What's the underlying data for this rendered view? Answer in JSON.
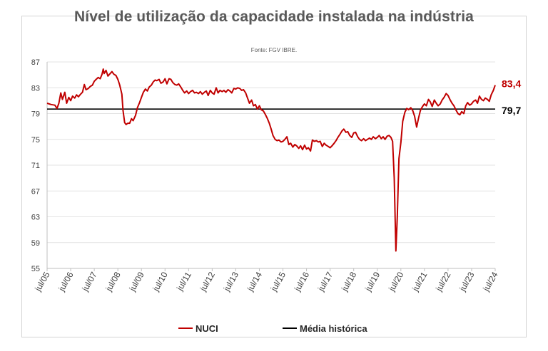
{
  "chart_data": {
    "type": "line",
    "title": "Nível de utilização da capacidade instalada na indústria",
    "source": "Fonte: FGV IBRE.",
    "xlabel": "",
    "ylabel": "",
    "ylim": [
      55,
      87
    ],
    "yticks": [
      "87",
      "83",
      "79",
      "75",
      "71",
      "67",
      "63",
      "59",
      "55"
    ],
    "xlim": [
      2005.5,
      2024.5
    ],
    "xticks": [
      "jul/05",
      "jul/06",
      "jul/07",
      "jul/08",
      "jul/09",
      "jul/10",
      "jul/11",
      "jul/12",
      "jul/13",
      "jul/14",
      "jul/15",
      "jul/16",
      "jul/17",
      "jul/18",
      "jul/19",
      "jul/20",
      "jul/21",
      "jul/22",
      "jul/23",
      "jul/24"
    ],
    "series": [
      {
        "name": "NUCI",
        "color": "#c00000",
        "end_label": "83,4",
        "points": [
          [
            2005.5,
            80.6
          ],
          [
            2005.67,
            80.4
          ],
          [
            2005.83,
            80.3
          ],
          [
            2005.92,
            79.8
          ],
          [
            2006.0,
            80.6
          ],
          [
            2006.08,
            82.2
          ],
          [
            2006.15,
            81.2
          ],
          [
            2006.25,
            82.3
          ],
          [
            2006.33,
            80.6
          ],
          [
            2006.42,
            81.5
          ],
          [
            2006.5,
            81.0
          ],
          [
            2006.58,
            81.7
          ],
          [
            2006.67,
            81.4
          ],
          [
            2006.75,
            81.9
          ],
          [
            2006.83,
            81.6
          ],
          [
            2006.92,
            82.0
          ],
          [
            2007.0,
            82.3
          ],
          [
            2007.08,
            83.5
          ],
          [
            2007.15,
            82.7
          ],
          [
            2007.25,
            82.9
          ],
          [
            2007.33,
            83.2
          ],
          [
            2007.42,
            83.4
          ],
          [
            2007.5,
            84.0
          ],
          [
            2007.58,
            84.3
          ],
          [
            2007.67,
            84.6
          ],
          [
            2007.75,
            84.4
          ],
          [
            2007.83,
            85.1
          ],
          [
            2007.88,
            85.9
          ],
          [
            2007.92,
            85.2
          ],
          [
            2008.0,
            85.7
          ],
          [
            2008.08,
            84.8
          ],
          [
            2008.15,
            85.1
          ],
          [
            2008.25,
            85.5
          ],
          [
            2008.33,
            85.1
          ],
          [
            2008.42,
            84.9
          ],
          [
            2008.5,
            84.3
          ],
          [
            2008.58,
            83.4
          ],
          [
            2008.67,
            82.0
          ],
          [
            2008.72,
            79.5
          ],
          [
            2008.79,
            77.6
          ],
          [
            2008.85,
            77.3
          ],
          [
            2008.92,
            77.5
          ],
          [
            2009.0,
            77.5
          ],
          [
            2009.08,
            78.2
          ],
          [
            2009.15,
            77.9
          ],
          [
            2009.25,
            78.7
          ],
          [
            2009.33,
            79.9
          ],
          [
            2009.42,
            80.7
          ],
          [
            2009.5,
            81.5
          ],
          [
            2009.58,
            82.3
          ],
          [
            2009.67,
            82.8
          ],
          [
            2009.75,
            82.5
          ],
          [
            2009.83,
            83.1
          ],
          [
            2009.92,
            83.4
          ],
          [
            2010.0,
            83.9
          ],
          [
            2010.08,
            84.2
          ],
          [
            2010.15,
            84.1
          ],
          [
            2010.25,
            84.3
          ],
          [
            2010.33,
            83.7
          ],
          [
            2010.42,
            83.9
          ],
          [
            2010.5,
            84.4
          ],
          [
            2010.58,
            83.6
          ],
          [
            2010.67,
            84.4
          ],
          [
            2010.75,
            84.3
          ],
          [
            2010.83,
            83.8
          ],
          [
            2010.92,
            83.5
          ],
          [
            2011.0,
            83.4
          ],
          [
            2011.08,
            83.6
          ],
          [
            2011.17,
            83.1
          ],
          [
            2011.25,
            82.6
          ],
          [
            2011.33,
            82.2
          ],
          [
            2011.42,
            82.5
          ],
          [
            2011.5,
            82.1
          ],
          [
            2011.58,
            82.4
          ],
          [
            2011.67,
            82.6
          ],
          [
            2011.75,
            82.2
          ],
          [
            2011.83,
            82.3
          ],
          [
            2011.92,
            82.1
          ],
          [
            2012.0,
            82.4
          ],
          [
            2012.08,
            82.0
          ],
          [
            2012.17,
            82.3
          ],
          [
            2012.25,
            82.5
          ],
          [
            2012.33,
            81.8
          ],
          [
            2012.42,
            82.6
          ],
          [
            2012.5,
            82.2
          ],
          [
            2012.58,
            82.0
          ],
          [
            2012.67,
            83.0
          ],
          [
            2012.75,
            82.2
          ],
          [
            2012.83,
            82.6
          ],
          [
            2012.92,
            82.4
          ],
          [
            2013.0,
            82.6
          ],
          [
            2013.08,
            82.3
          ],
          [
            2013.17,
            82.7
          ],
          [
            2013.25,
            82.5
          ],
          [
            2013.33,
            82.2
          ],
          [
            2013.42,
            82.9
          ],
          [
            2013.5,
            82.8
          ],
          [
            2013.58,
            83.0
          ],
          [
            2013.67,
            82.9
          ],
          [
            2013.75,
            82.6
          ],
          [
            2013.83,
            82.7
          ],
          [
            2013.92,
            82.2
          ],
          [
            2014.0,
            81.4
          ],
          [
            2014.08,
            80.6
          ],
          [
            2014.17,
            81.1
          ],
          [
            2014.25,
            80.2
          ],
          [
            2014.33,
            80.4
          ],
          [
            2014.42,
            79.7
          ],
          [
            2014.5,
            80.2
          ],
          [
            2014.58,
            79.6
          ],
          [
            2014.67,
            79.4
          ],
          [
            2014.75,
            78.9
          ],
          [
            2014.83,
            78.3
          ],
          [
            2014.92,
            77.5
          ],
          [
            2015.0,
            76.6
          ],
          [
            2015.08,
            75.6
          ],
          [
            2015.17,
            75.0
          ],
          [
            2015.25,
            74.8
          ],
          [
            2015.33,
            74.9
          ],
          [
            2015.42,
            74.6
          ],
          [
            2015.5,
            74.7
          ],
          [
            2015.58,
            75.0
          ],
          [
            2015.67,
            75.4
          ],
          [
            2015.75,
            74.2
          ],
          [
            2015.83,
            74.4
          ],
          [
            2015.92,
            73.8
          ],
          [
            2016.0,
            74.2
          ],
          [
            2016.08,
            74.0
          ],
          [
            2016.17,
            73.6
          ],
          [
            2016.25,
            74.0
          ],
          [
            2016.33,
            73.4
          ],
          [
            2016.42,
            74.1
          ],
          [
            2016.5,
            73.5
          ],
          [
            2016.58,
            73.7
          ],
          [
            2016.67,
            73.2
          ],
          [
            2016.75,
            74.9
          ],
          [
            2016.83,
            74.7
          ],
          [
            2016.92,
            74.8
          ],
          [
            2017.0,
            74.6
          ],
          [
            2017.08,
            74.7
          ],
          [
            2017.17,
            73.9
          ],
          [
            2017.25,
            74.4
          ],
          [
            2017.33,
            74.1
          ],
          [
            2017.42,
            73.9
          ],
          [
            2017.5,
            73.7
          ],
          [
            2017.58,
            74.0
          ],
          [
            2017.67,
            74.4
          ],
          [
            2017.75,
            74.8
          ],
          [
            2017.83,
            75.3
          ],
          [
            2017.92,
            75.8
          ],
          [
            2018.0,
            76.3
          ],
          [
            2018.08,
            76.6
          ],
          [
            2018.17,
            76.1
          ],
          [
            2018.25,
            76.2
          ],
          [
            2018.33,
            75.6
          ],
          [
            2018.42,
            75.3
          ],
          [
            2018.5,
            76.0
          ],
          [
            2018.58,
            76.1
          ],
          [
            2018.67,
            75.4
          ],
          [
            2018.75,
            75.0
          ],
          [
            2018.83,
            74.8
          ],
          [
            2018.92,
            75.1
          ],
          [
            2019.0,
            74.8
          ],
          [
            2019.08,
            75.0
          ],
          [
            2019.17,
            75.2
          ],
          [
            2019.25,
            75.0
          ],
          [
            2019.33,
            75.4
          ],
          [
            2019.42,
            75.1
          ],
          [
            2019.5,
            75.3
          ],
          [
            2019.58,
            75.6
          ],
          [
            2019.67,
            75.1
          ],
          [
            2019.75,
            75.4
          ],
          [
            2019.83,
            75.0
          ],
          [
            2019.92,
            75.5
          ],
          [
            2020.0,
            75.6
          ],
          [
            2020.08,
            75.3
          ],
          [
            2020.15,
            74.7
          ],
          [
            2020.22,
            69.0
          ],
          [
            2020.29,
            57.7
          ],
          [
            2020.35,
            63.0
          ],
          [
            2020.42,
            72.0
          ],
          [
            2020.5,
            74.5
          ],
          [
            2020.58,
            77.8
          ],
          [
            2020.67,
            79.2
          ],
          [
            2020.75,
            79.8
          ],
          [
            2020.83,
            79.6
          ],
          [
            2020.92,
            79.9
          ],
          [
            2021.0,
            79.5
          ],
          [
            2021.08,
            78.6
          ],
          [
            2021.17,
            76.9
          ],
          [
            2021.25,
            78.3
          ],
          [
            2021.33,
            79.5
          ],
          [
            2021.42,
            80.1
          ],
          [
            2021.5,
            80.5
          ],
          [
            2021.58,
            80.2
          ],
          [
            2021.67,
            81.2
          ],
          [
            2021.75,
            80.8
          ],
          [
            2021.83,
            80.1
          ],
          [
            2021.92,
            81.1
          ],
          [
            2022.0,
            80.6
          ],
          [
            2022.08,
            80.2
          ],
          [
            2022.17,
            80.5
          ],
          [
            2022.25,
            81.1
          ],
          [
            2022.33,
            81.5
          ],
          [
            2022.42,
            82.1
          ],
          [
            2022.5,
            81.8
          ],
          [
            2022.58,
            81.2
          ],
          [
            2022.67,
            80.6
          ],
          [
            2022.75,
            80.2
          ],
          [
            2022.83,
            79.6
          ],
          [
            2022.92,
            79.0
          ],
          [
            2023.0,
            78.8
          ],
          [
            2023.08,
            79.3
          ],
          [
            2023.17,
            79.0
          ],
          [
            2023.25,
            80.2
          ],
          [
            2023.33,
            80.7
          ],
          [
            2023.42,
            80.3
          ],
          [
            2023.5,
            80.5
          ],
          [
            2023.58,
            80.9
          ],
          [
            2023.67,
            81.1
          ],
          [
            2023.75,
            80.6
          ],
          [
            2023.83,
            81.7
          ],
          [
            2023.92,
            81.2
          ],
          [
            2024.0,
            81.0
          ],
          [
            2024.08,
            81.4
          ],
          [
            2024.17,
            81.2
          ],
          [
            2024.25,
            80.9
          ],
          [
            2024.33,
            81.9
          ],
          [
            2024.42,
            82.6
          ],
          [
            2024.5,
            83.4
          ]
        ]
      },
      {
        "name": "Média histórica",
        "color": "#000000",
        "end_label": "79,7",
        "value": 79.7
      }
    ],
    "legend": {
      "position": "bottom",
      "items": [
        "NUCI",
        "Média histórica"
      ]
    }
  }
}
